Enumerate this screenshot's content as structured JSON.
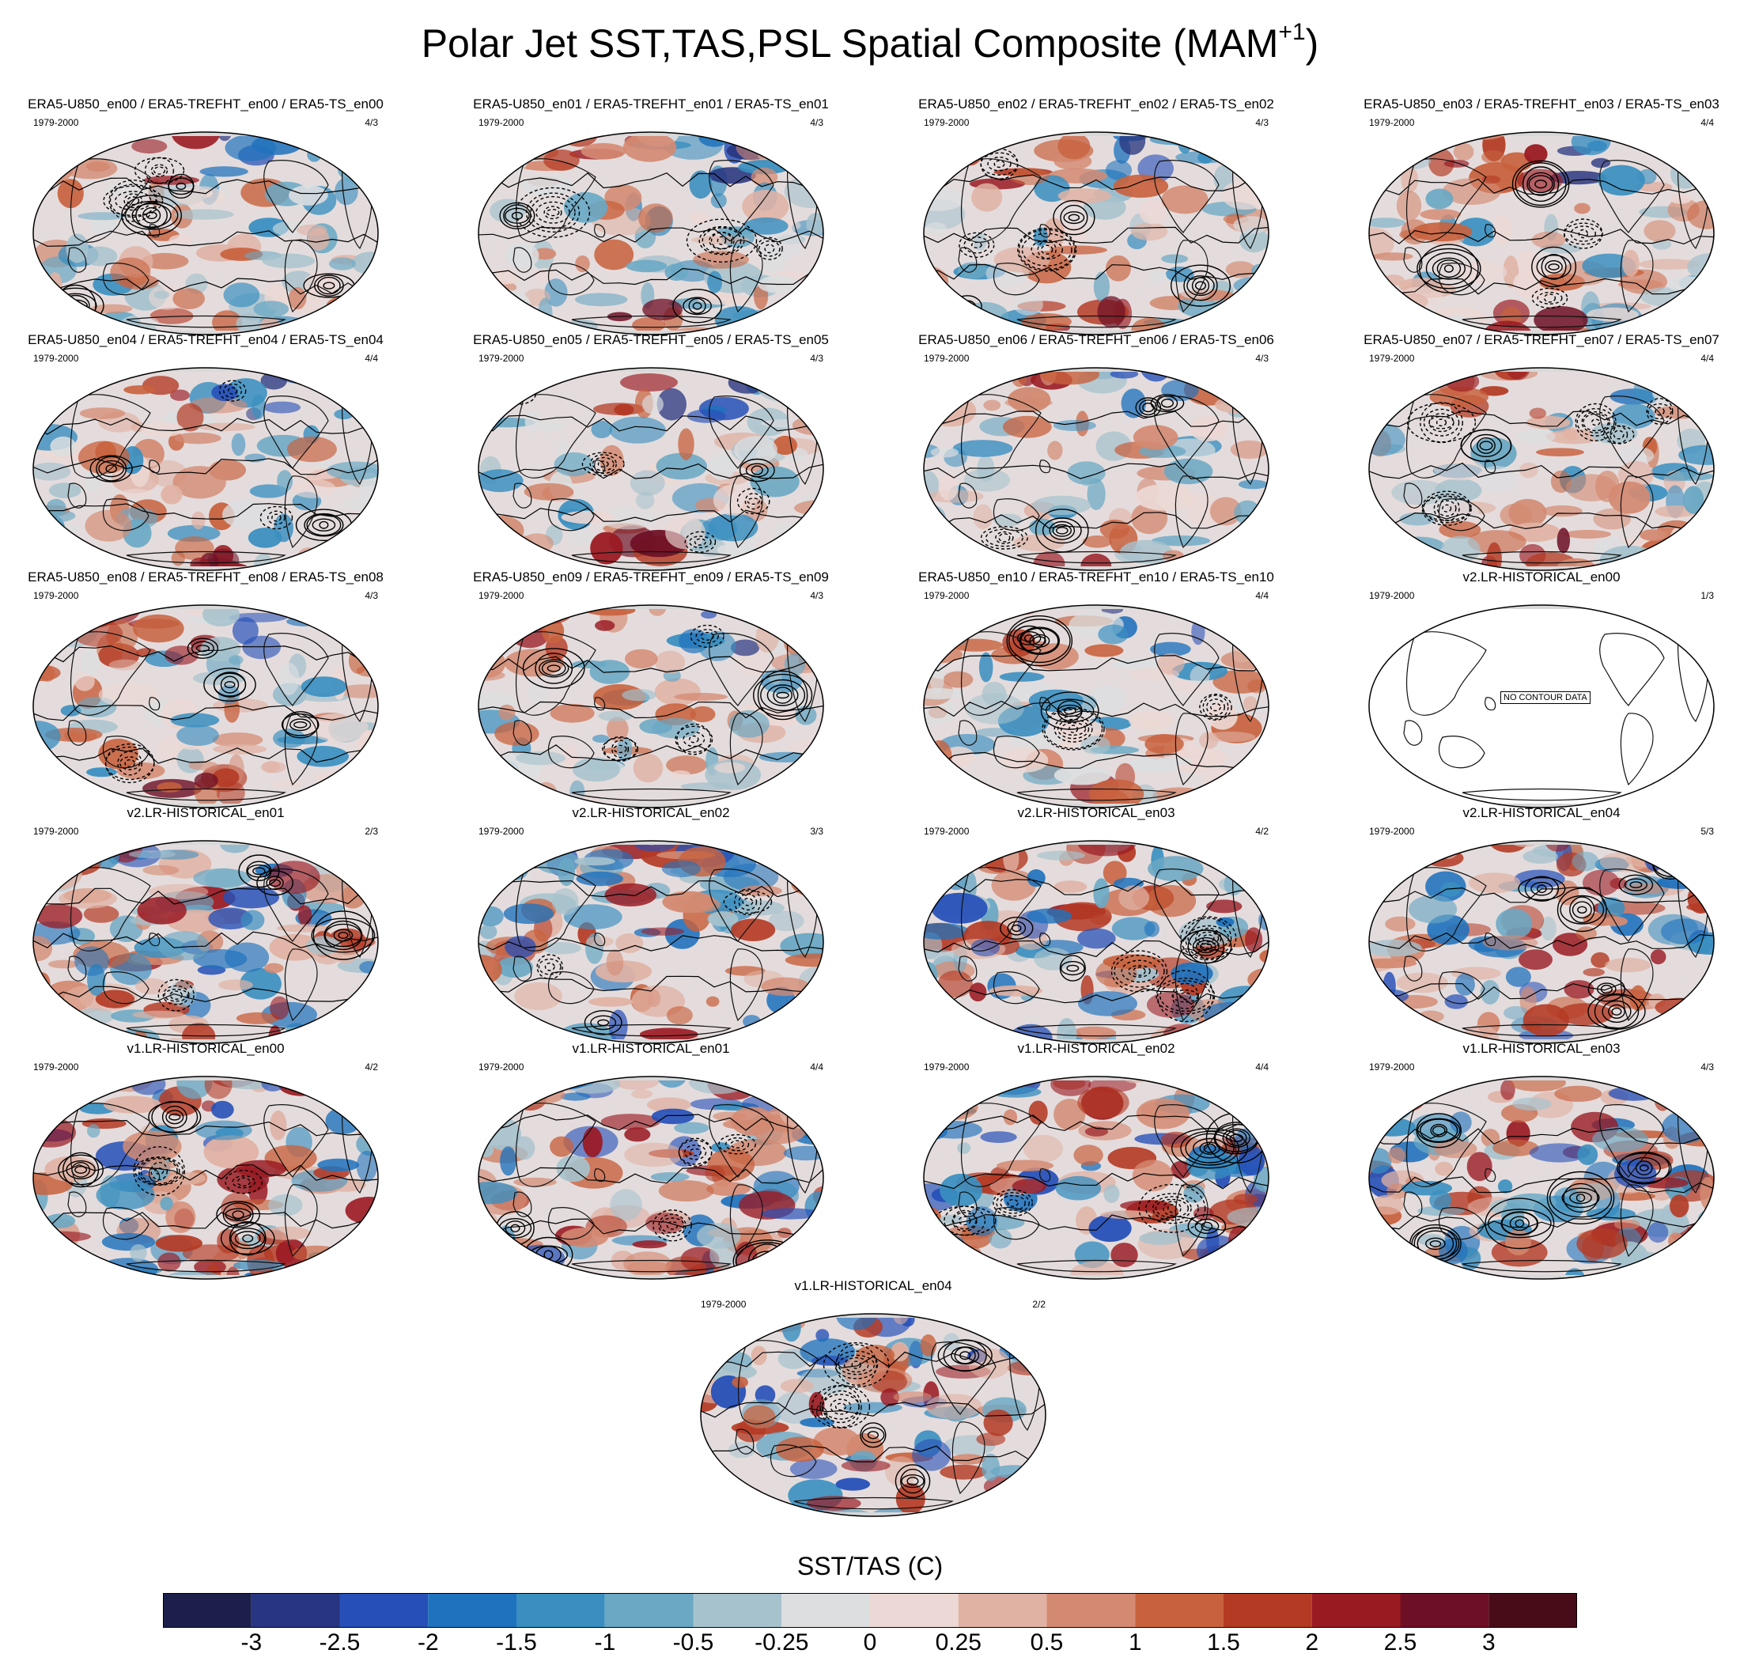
{
  "figure": {
    "title": "Polar Jet SST,TAS,PSL Spatial Composite (MAM",
    "title_sup": "+1",
    "title_close": ")",
    "no_data_label": "NO CONTOUR DATA"
  },
  "panels": [
    {
      "title": "ERA5-U850_en00 / ERA5-TREFHT_en00 / ERA5-TS_en00",
      "period": "1979-2000",
      "ratio": "4/3",
      "style": "era5",
      "seed": 11
    },
    {
      "title": "ERA5-U850_en01 / ERA5-TREFHT_en01 / ERA5-TS_en01",
      "period": "1979-2000",
      "ratio": "4/3",
      "style": "era5",
      "seed": 12
    },
    {
      "title": "ERA5-U850_en02 / ERA5-TREFHT_en02 / ERA5-TS_en02",
      "period": "1979-2000",
      "ratio": "4/3",
      "style": "era5",
      "seed": 13
    },
    {
      "title": "ERA5-U850_en03 / ERA5-TREFHT_en03 / ERA5-TS_en03",
      "period": "1979-2000",
      "ratio": "4/4",
      "style": "era5",
      "seed": 14
    },
    {
      "title": "ERA5-U850_en04 / ERA5-TREFHT_en04 / ERA5-TS_en04",
      "period": "1979-2000",
      "ratio": "4/4",
      "style": "era5",
      "seed": 15
    },
    {
      "title": "ERA5-U850_en05 / ERA5-TREFHT_en05 / ERA5-TS_en05",
      "period": "1979-2000",
      "ratio": "4/3",
      "style": "era5",
      "seed": 16
    },
    {
      "title": "ERA5-U850_en06 / ERA5-TREFHT_en06 / ERA5-TS_en06",
      "period": "1979-2000",
      "ratio": "4/3",
      "style": "era5",
      "seed": 17
    },
    {
      "title": "ERA5-U850_en07 / ERA5-TREFHT_en07 / ERA5-TS_en07",
      "period": "1979-2000",
      "ratio": "4/4",
      "style": "era5",
      "seed": 18
    },
    {
      "title": "ERA5-U850_en08 / ERA5-TREFHT_en08 / ERA5-TS_en08",
      "period": "1979-2000",
      "ratio": "4/3",
      "style": "era5",
      "seed": 19
    },
    {
      "title": "ERA5-U850_en09 / ERA5-TREFHT_en09 / ERA5-TS_en09",
      "period": "1979-2000",
      "ratio": "4/3",
      "style": "era5",
      "seed": 20
    },
    {
      "title": "ERA5-U850_en10 / ERA5-TREFHT_en10 / ERA5-TS_en10",
      "period": "1979-2000",
      "ratio": "4/4",
      "style": "era5",
      "seed": 21
    },
    {
      "title": "v2.LR-HISTORICAL_en00",
      "period": "1979-2000",
      "ratio": "1/3",
      "style": "blank",
      "seed": 22
    },
    {
      "title": "v2.LR-HISTORICAL_en01",
      "period": "1979-2000",
      "ratio": "2/3",
      "style": "model",
      "seed": 23
    },
    {
      "title": "v2.LR-HISTORICAL_en02",
      "period": "1979-2000",
      "ratio": "3/3",
      "style": "model",
      "seed": 24
    },
    {
      "title": "v2.LR-HISTORICAL_en03",
      "period": "1979-2000",
      "ratio": "4/2",
      "style": "model",
      "seed": 25
    },
    {
      "title": "v2.LR-HISTORICAL_en04",
      "period": "1979-2000",
      "ratio": "5/3",
      "style": "model",
      "seed": 26
    },
    {
      "title": "v1.LR-HISTORICAL_en00",
      "period": "1979-2000",
      "ratio": "4/2",
      "style": "model",
      "seed": 27
    },
    {
      "title": "v1.LR-HISTORICAL_en01",
      "period": "1979-2000",
      "ratio": "4/4",
      "style": "model",
      "seed": 28
    },
    {
      "title": "v1.LR-HISTORICAL_en02",
      "period": "1979-2000",
      "ratio": "4/4",
      "style": "model",
      "seed": 29
    },
    {
      "title": "v1.LR-HISTORICAL_en03",
      "period": "1979-2000",
      "ratio": "4/3",
      "style": "model",
      "seed": 30
    },
    {
      "title": "v1.LR-HISTORICAL_en04",
      "period": "1979-2000",
      "ratio": "2/2",
      "style": "model",
      "seed": 31
    }
  ],
  "colorbar": {
    "title": "SST/TAS (C)",
    "labels": [
      "-3",
      "-2.5",
      "-2",
      "-1.5",
      "-1",
      "-0.5",
      "-0.25",
      "0",
      "0.25",
      "0.5",
      "1",
      "1.5",
      "2",
      "2.5",
      "3"
    ],
    "colors": [
      "#1b1f4a",
      "#283580",
      "#2650b8",
      "#1f72bd",
      "#3a8fc0",
      "#6aa8c4",
      "#a6c2cd",
      "#dcdee0",
      "#ecd8d4",
      "#e0b2a4",
      "#d48a72",
      "#c8623e",
      "#b43a24",
      "#9a1a22",
      "#6e1025",
      "#480c18"
    ]
  }
}
